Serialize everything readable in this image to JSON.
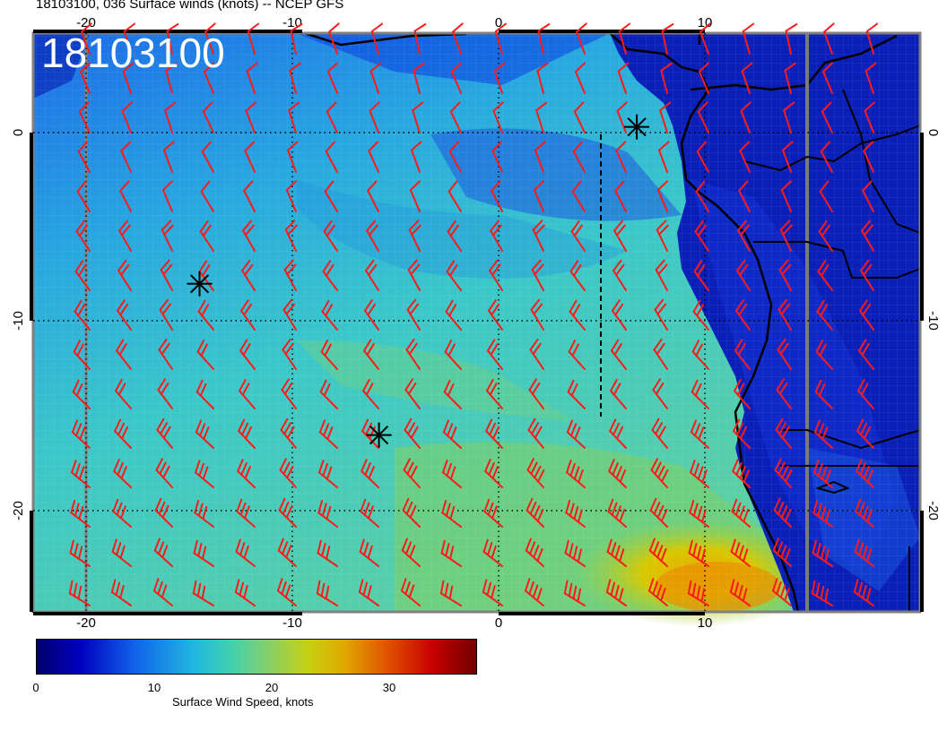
{
  "title": "18103100, 036 Surface winds (knots) -- NCEP GFS",
  "stamp": "18103100",
  "lon_ticks": [
    "-20",
    "-10",
    "0",
    "10"
  ],
  "lat_ticks": [
    "0",
    "-10",
    "-20"
  ],
  "colorbar": {
    "label": "Surface Wind Speed, knots",
    "ticks": [
      "0",
      "10",
      "20",
      "30"
    ],
    "range": [
      0,
      37
    ]
  },
  "colors": {
    "barb": "#ff1a1a",
    "coast": "#000000",
    "ocean_low": "#0a2fd8",
    "ocean_mid": "#30c8d8",
    "ocean_high": "#e0c000"
  },
  "markers": [
    {
      "name": "marker-west",
      "lon": -14.5,
      "lat": -8
    },
    {
      "name": "marker-south",
      "lon": -5.8,
      "lat": -16
    },
    {
      "name": "marker-gulf",
      "lon": 6.7,
      "lat": 0.3
    }
  ]
}
